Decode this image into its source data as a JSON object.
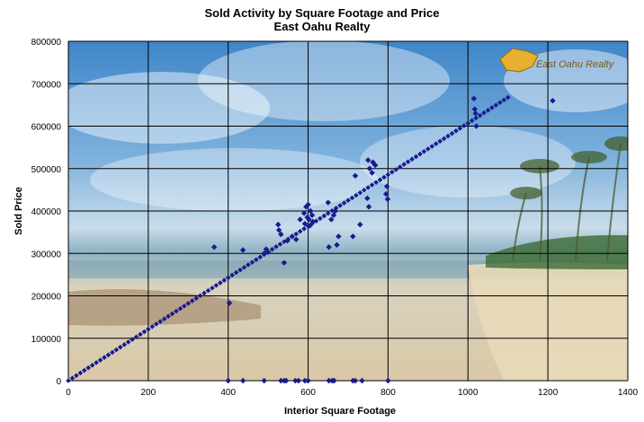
{
  "chart_data": {
    "type": "scatter",
    "title": "Sold Activity by Square Footage and Price",
    "subtitle": "East Oahu Realty",
    "xlabel": "Interior Square Footage",
    "ylabel": "Sold Price",
    "xlim": [
      0,
      1400
    ],
    "ylim": [
      0,
      800000
    ],
    "xticks": [
      "0",
      "200",
      "400",
      "600",
      "800",
      "1000",
      "1200",
      "1400"
    ],
    "yticks": [
      "0",
      "100000",
      "200000",
      "300000",
      "400000",
      "500000",
      "600000",
      "700000",
      "800000"
    ],
    "grid": true,
    "background_photo": "beach-and-palm-trees",
    "logo_text": "East Oahu Realty",
    "marker_color": "#1a1a8c",
    "trend": {
      "slope_per_sqft": 607,
      "x_start": 0,
      "x_end": 1100
    },
    "points": [
      {
        "x": 365,
        "y": 315000
      },
      {
        "x": 403,
        "y": 183000
      },
      {
        "x": 437,
        "y": 308000
      },
      {
        "x": 490,
        "y": 300000
      },
      {
        "x": 495,
        "y": 310000
      },
      {
        "x": 500,
        "y": 303000
      },
      {
        "x": 525,
        "y": 368000
      },
      {
        "x": 527,
        "y": 355000
      },
      {
        "x": 532,
        "y": 345000
      },
      {
        "x": 540,
        "y": 278000
      },
      {
        "x": 548,
        "y": 330000
      },
      {
        "x": 560,
        "y": 340000
      },
      {
        "x": 570,
        "y": 333000
      },
      {
        "x": 580,
        "y": 380000
      },
      {
        "x": 590,
        "y": 395000
      },
      {
        "x": 592,
        "y": 370000
      },
      {
        "x": 595,
        "y": 410000
      },
      {
        "x": 598,
        "y": 385000
      },
      {
        "x": 600,
        "y": 415000
      },
      {
        "x": 602,
        "y": 380000
      },
      {
        "x": 604,
        "y": 365000
      },
      {
        "x": 606,
        "y": 400000
      },
      {
        "x": 610,
        "y": 390000
      },
      {
        "x": 612,
        "y": 375000
      },
      {
        "x": 650,
        "y": 420000
      },
      {
        "x": 652,
        "y": 315000
      },
      {
        "x": 658,
        "y": 380000
      },
      {
        "x": 664,
        "y": 390000
      },
      {
        "x": 668,
        "y": 400000
      },
      {
        "x": 672,
        "y": 320000
      },
      {
        "x": 676,
        "y": 340000
      },
      {
        "x": 712,
        "y": 340000
      },
      {
        "x": 718,
        "y": 483000
      },
      {
        "x": 730,
        "y": 368000
      },
      {
        "x": 748,
        "y": 430000
      },
      {
        "x": 750,
        "y": 520000
      },
      {
        "x": 752,
        "y": 410000
      },
      {
        "x": 754,
        "y": 500000
      },
      {
        "x": 760,
        "y": 490000
      },
      {
        "x": 762,
        "y": 515000
      },
      {
        "x": 768,
        "y": 508000
      },
      {
        "x": 795,
        "y": 440000
      },
      {
        "x": 797,
        "y": 458000
      },
      {
        "x": 799,
        "y": 428000
      },
      {
        "x": 1015,
        "y": 665000
      },
      {
        "x": 1017,
        "y": 640000
      },
      {
        "x": 1019,
        "y": 630000
      },
      {
        "x": 1021,
        "y": 600000
      },
      {
        "x": 1212,
        "y": 660000
      },
      {
        "x": 400,
        "y": 0
      },
      {
        "x": 437,
        "y": 0
      },
      {
        "x": 490,
        "y": 0
      },
      {
        "x": 532,
        "y": 0
      },
      {
        "x": 540,
        "y": 0
      },
      {
        "x": 545,
        "y": 0
      },
      {
        "x": 568,
        "y": 0
      },
      {
        "x": 576,
        "y": 0
      },
      {
        "x": 592,
        "y": 0
      },
      {
        "x": 600,
        "y": 0
      },
      {
        "x": 652,
        "y": 0
      },
      {
        "x": 660,
        "y": 0
      },
      {
        "x": 665,
        "y": 0
      },
      {
        "x": 712,
        "y": 0
      },
      {
        "x": 718,
        "y": 0
      },
      {
        "x": 735,
        "y": 0
      },
      {
        "x": 800,
        "y": 0
      }
    ]
  }
}
